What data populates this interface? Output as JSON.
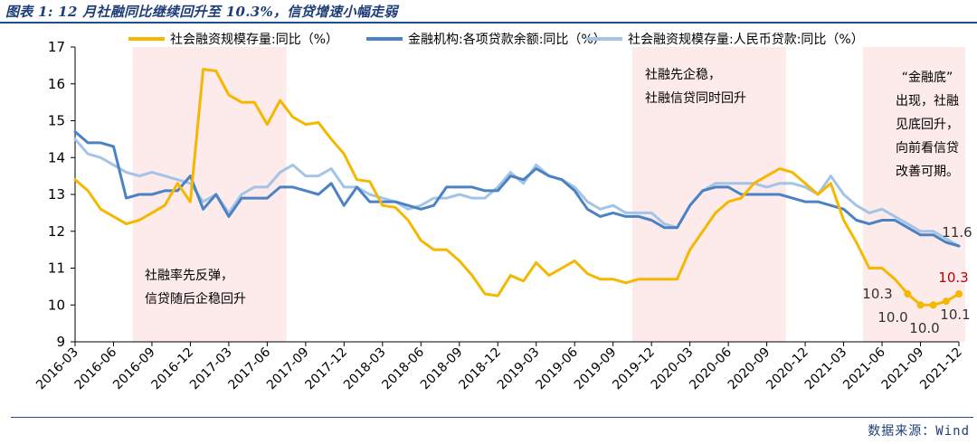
{
  "header": {
    "title": "图表 1: 12 月社融同比继续回升至 10.3%，信贷增速小幅走弱",
    "source": "数据来源：Wind"
  },
  "chart_data": {
    "type": "line",
    "ylim": [
      9,
      17
    ],
    "yticks": [
      "9",
      "10",
      "11",
      "12",
      "13",
      "14",
      "15",
      "16",
      "17"
    ],
    "x": [
      "2016-03",
      "2016-04",
      "2016-05",
      "2016-06",
      "2016-07",
      "2016-08",
      "2016-09",
      "2016-10",
      "2016-11",
      "2016-12",
      "2017-01",
      "2017-02",
      "2017-03",
      "2017-04",
      "2017-05",
      "2017-06",
      "2017-07",
      "2017-08",
      "2017-09",
      "2017-10",
      "2017-11",
      "2017-12",
      "2018-01",
      "2018-02",
      "2018-03",
      "2018-04",
      "2018-05",
      "2018-06",
      "2018-07",
      "2018-08",
      "2018-09",
      "2018-10",
      "2018-11",
      "2018-12",
      "2019-01",
      "2019-02",
      "2019-03",
      "2019-04",
      "2019-05",
      "2019-06",
      "2019-07",
      "2019-08",
      "2019-09",
      "2019-10",
      "2019-11",
      "2019-12",
      "2020-01",
      "2020-02",
      "2020-03",
      "2020-04",
      "2020-05",
      "2020-06",
      "2020-07",
      "2020-08",
      "2020-09",
      "2020-10",
      "2020-11",
      "2020-12",
      "2021-01",
      "2021-02",
      "2021-03",
      "2021-04",
      "2021-05",
      "2021-06",
      "2021-07",
      "2021-08",
      "2021-09",
      "2021-10",
      "2021-11",
      "2021-12"
    ],
    "xticks": [
      "2016-03",
      "2016-06",
      "2016-09",
      "2016-12",
      "2017-03",
      "2017-06",
      "2017-09",
      "2017-12",
      "2018-03",
      "2018-06",
      "2018-09",
      "2018-12",
      "2019-03",
      "2019-06",
      "2019-09",
      "2019-12",
      "2020-03",
      "2020-06",
      "2020-09",
      "2020-12",
      "2021-03",
      "2021-06",
      "2021-09",
      "2021-12"
    ],
    "series": [
      {
        "name": "社会融资规模存量:同比（%）",
        "color": "#f5b800",
        "values": [
          13.4,
          13.1,
          12.6,
          12.4,
          12.2,
          12.3,
          12.5,
          12.7,
          13.3,
          12.8,
          16.4,
          16.35,
          15.7,
          15.5,
          15.5,
          14.9,
          15.55,
          15.1,
          14.9,
          14.95,
          14.5,
          14.1,
          13.4,
          13.35,
          12.7,
          12.65,
          12.3,
          11.75,
          11.5,
          11.5,
          11.2,
          10.8,
          10.3,
          10.25,
          10.8,
          10.65,
          11.15,
          10.8,
          11.0,
          11.2,
          10.85,
          10.7,
          10.7,
          10.6,
          10.7,
          10.7,
          10.7,
          10.7,
          11.5,
          12.0,
          12.5,
          12.8,
          12.9,
          13.3,
          13.5,
          13.7,
          13.6,
          13.3,
          13.0,
          13.3,
          12.3,
          11.7,
          11.0,
          11.0,
          10.7,
          10.3,
          10.0,
          10.0,
          10.1,
          10.3
        ]
      },
      {
        "name": "金融机构:各项贷款余额:同比（%）",
        "color": "#4a82c3",
        "values": [
          14.7,
          14.4,
          14.4,
          14.3,
          12.9,
          13.0,
          13.0,
          13.1,
          13.1,
          13.5,
          12.6,
          13.0,
          12.4,
          12.9,
          12.9,
          12.9,
          13.2,
          13.2,
          13.1,
          13.0,
          13.3,
          12.7,
          13.2,
          12.8,
          12.8,
          12.8,
          12.7,
          12.6,
          12.7,
          13.2,
          13.2,
          13.2,
          13.1,
          13.1,
          13.5,
          13.4,
          13.7,
          13.5,
          13.4,
          13.1,
          12.6,
          12.4,
          12.5,
          12.4,
          12.4,
          12.3,
          12.1,
          12.1,
          12.7,
          13.1,
          13.2,
          13.2,
          13.0,
          13.0,
          13.0,
          13.0,
          12.9,
          12.8,
          12.8,
          12.7,
          12.6,
          12.3,
          12.2,
          12.3,
          12.3,
          12.1,
          11.9,
          11.9,
          11.7,
          11.6
        ]
      },
      {
        "name": "社会融资规模存量:人民币贷款:同比（%）",
        "color": "#a3c4e6",
        "values": [
          14.5,
          14.1,
          14.0,
          13.8,
          13.6,
          13.5,
          13.6,
          13.5,
          13.4,
          13.3,
          12.8,
          13.0,
          12.5,
          13.0,
          13.2,
          13.2,
          13.6,
          13.8,
          13.5,
          13.5,
          13.7,
          13.2,
          13.2,
          13.0,
          12.9,
          12.8,
          12.6,
          12.7,
          12.9,
          12.9,
          13.0,
          12.9,
          12.9,
          13.2,
          13.6,
          13.3,
          13.8,
          13.5,
          13.4,
          13.2,
          12.8,
          12.6,
          12.7,
          12.5,
          12.5,
          12.5,
          12.2,
          12.1,
          12.7,
          13.1,
          13.3,
          13.3,
          13.3,
          13.3,
          13.2,
          13.3,
          13.3,
          13.2,
          13.0,
          13.5,
          13.0,
          12.7,
          12.5,
          12.6,
          12.4,
          12.2,
          12.0,
          12.0,
          11.8,
          11.6
        ]
      }
    ],
    "shaded_periods": [
      {
        "from": "2016-08",
        "to": "2017-07"
      },
      {
        "from": "2019-11",
        "to": "2020-10"
      },
      {
        "from": "2021-05",
        "to": "2021-12"
      }
    ],
    "annotations": [
      {
        "lines": [
          "社融率先反弹，",
          "信贷随后企稳回升"
        ]
      },
      {
        "lines": [
          "社融先企稳，",
          "社融信贷同时回升"
        ]
      },
      {
        "lines": [
          "“金融底”",
          "出现，社融",
          "见底回升，",
          "向前看信贷",
          "改善可期。"
        ]
      }
    ],
    "data_labels": [
      {
        "text": "10.3",
        "color": "#333333"
      },
      {
        "text": "10.0",
        "color": "#333333"
      },
      {
        "text": "10.0",
        "color": "#333333"
      },
      {
        "text": "10.1",
        "color": "#333333"
      },
      {
        "text": "10.3",
        "color": "#c00000"
      },
      {
        "text": "11.6",
        "color": "#333333"
      }
    ]
  }
}
